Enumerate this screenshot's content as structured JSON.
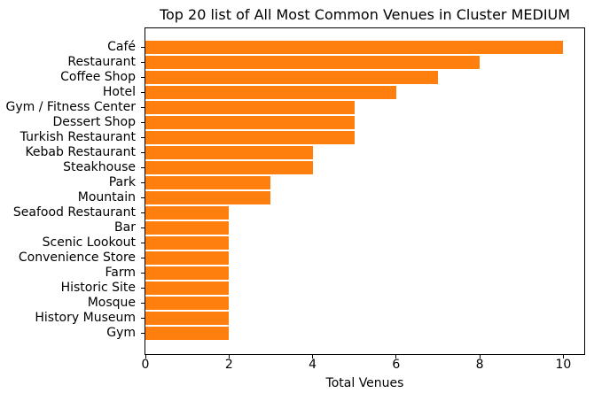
{
  "chart_data": {
    "type": "bar",
    "orientation": "horizontal",
    "title": "Top 20 list of All Most Common Venues in Cluster MEDIUM",
    "xlabel": "Total Venues",
    "ylabel": "",
    "categories": [
      "Café",
      "Restaurant",
      "Coffee Shop",
      "Hotel",
      "Gym / Fitness Center",
      "Dessert Shop",
      "Turkish Restaurant",
      "Kebab Restaurant",
      "Steakhouse",
      "Park",
      "Mountain",
      "Seafood Restaurant",
      "Bar",
      "Scenic Lookout",
      "Convenience Store",
      "Farm",
      "Historic Site",
      "Mosque",
      "History Museum",
      "Gym"
    ],
    "values": [
      10,
      8,
      7,
      6,
      5,
      5,
      5,
      4,
      4,
      3,
      3,
      2,
      2,
      2,
      2,
      2,
      2,
      2,
      2,
      2
    ],
    "x_ticks": [
      0,
      2,
      4,
      6,
      8,
      10
    ],
    "xlim": [
      0,
      10.5
    ],
    "bar_color": "#ff7f0e",
    "grid": false,
    "legend": null
  }
}
